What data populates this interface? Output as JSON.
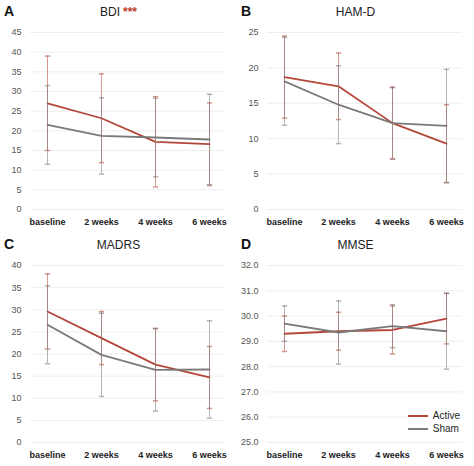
{
  "chart_data": [
    {
      "type": "line",
      "panel_label": "A",
      "title": "BDI",
      "annotation": {
        "text": "***",
        "color": "#c0392b"
      },
      "categories": [
        "baseline",
        "2 weeks",
        "4 weeks",
        "6 weeks"
      ],
      "ylim": [
        0,
        45
      ],
      "yticks": [
        0,
        5,
        10,
        15,
        20,
        25,
        30,
        35,
        40,
        45
      ],
      "grid": true,
      "series": [
        {
          "name": "Active",
          "color": "#b5473a",
          "values": [
            27,
            23.2,
            17.2,
            16.6
          ],
          "errors": [
            12,
            11.3,
            11.5,
            10.5
          ]
        },
        {
          "name": "Sham",
          "color": "#7a7a7a",
          "values": [
            21.5,
            18.7,
            18.3,
            17.8
          ],
          "errors": [
            10,
            9.7,
            10,
            11.5
          ]
        }
      ]
    },
    {
      "type": "line",
      "panel_label": "B",
      "title": "HAM-D",
      "categories": [
        "baseline",
        "2 weeks",
        "4 weeks",
        "6 weeks"
      ],
      "ylim": [
        0,
        25
      ],
      "yticks": [
        0,
        5,
        10,
        15,
        20,
        25
      ],
      "grid": true,
      "series": [
        {
          "name": "Active",
          "color": "#b5473a",
          "values": [
            18.7,
            17.4,
            12.2,
            9.3
          ],
          "errors": [
            5.8,
            4.7,
            5.1,
            5.5
          ]
        },
        {
          "name": "Sham",
          "color": "#7a7a7a",
          "values": [
            18.1,
            14.8,
            12.2,
            11.8
          ],
          "errors": [
            6.2,
            5.5,
            5,
            8
          ]
        }
      ]
    },
    {
      "type": "line",
      "panel_label": "C",
      "title": "MADRS",
      "categories": [
        "baseline",
        "2 weeks",
        "4 weeks",
        "6 weeks"
      ],
      "ylim": [
        0,
        40
      ],
      "yticks": [
        0,
        5,
        10,
        15,
        20,
        25,
        30,
        35,
        40
      ],
      "grid": true,
      "series": [
        {
          "name": "Active",
          "color": "#b5473a",
          "values": [
            29.6,
            23.6,
            17.6,
            14.7
          ],
          "errors": [
            8.5,
            6,
            8.2,
            7
          ]
        },
        {
          "name": "Sham",
          "color": "#7a7a7a",
          "values": [
            26.6,
            19.8,
            16.4,
            16.5
          ],
          "errors": [
            8.8,
            9.4,
            9.3,
            11
          ]
        }
      ]
    },
    {
      "type": "line",
      "panel_label": "D",
      "title": "MMSE",
      "categories": [
        "baseline",
        "2 weeks",
        "4 weeks",
        "6 weeks"
      ],
      "ylim": [
        25,
        32
      ],
      "yticks": [
        25,
        26,
        27,
        28,
        29,
        30,
        31,
        32
      ],
      "grid": true,
      "legend": "bottom-right",
      "series": [
        {
          "name": "Active",
          "color": "#b5473a",
          "values": [
            29.3,
            29.4,
            29.45,
            29.9
          ],
          "errors": [
            0.7,
            0.75,
            0.95,
            1
          ]
        },
        {
          "name": "Sham",
          "color": "#7a7a7a",
          "values": [
            29.7,
            29.35,
            29.6,
            29.4
          ],
          "errors": [
            0.7,
            1.25,
            0.85,
            1.5
          ]
        }
      ]
    }
  ]
}
